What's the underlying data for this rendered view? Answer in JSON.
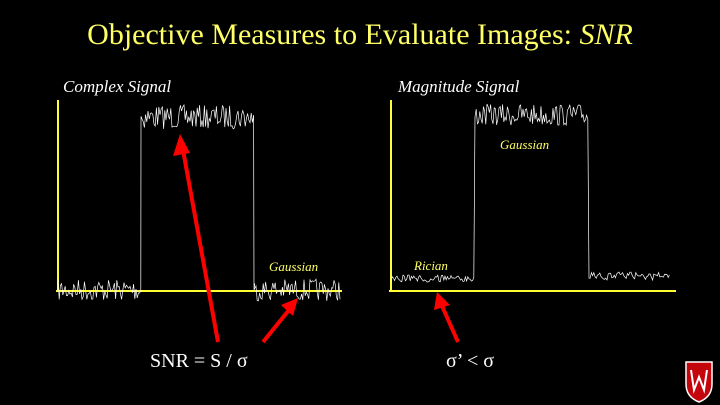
{
  "slide": {
    "title_main": "Objective Measures to Evaluate Images: ",
    "title_italic": "SNR",
    "left_plot_label": "Complex Signal",
    "right_plot_label": "Magnitude Signal",
    "left_noise_label": "Gaussian",
    "right_signal_label": "Gaussian",
    "right_noise_label": "Rician",
    "left_formula": "SNR = S / σ",
    "right_formula": "σ’ < σ"
  },
  "colors": {
    "background": "#000000",
    "title": "#ffff66",
    "axis": "#ffff33",
    "signal": "#ffffff",
    "arrow": "#ff0000",
    "logo": "#c5050c"
  },
  "icons": {
    "logo": "uw-crest-icon"
  }
}
